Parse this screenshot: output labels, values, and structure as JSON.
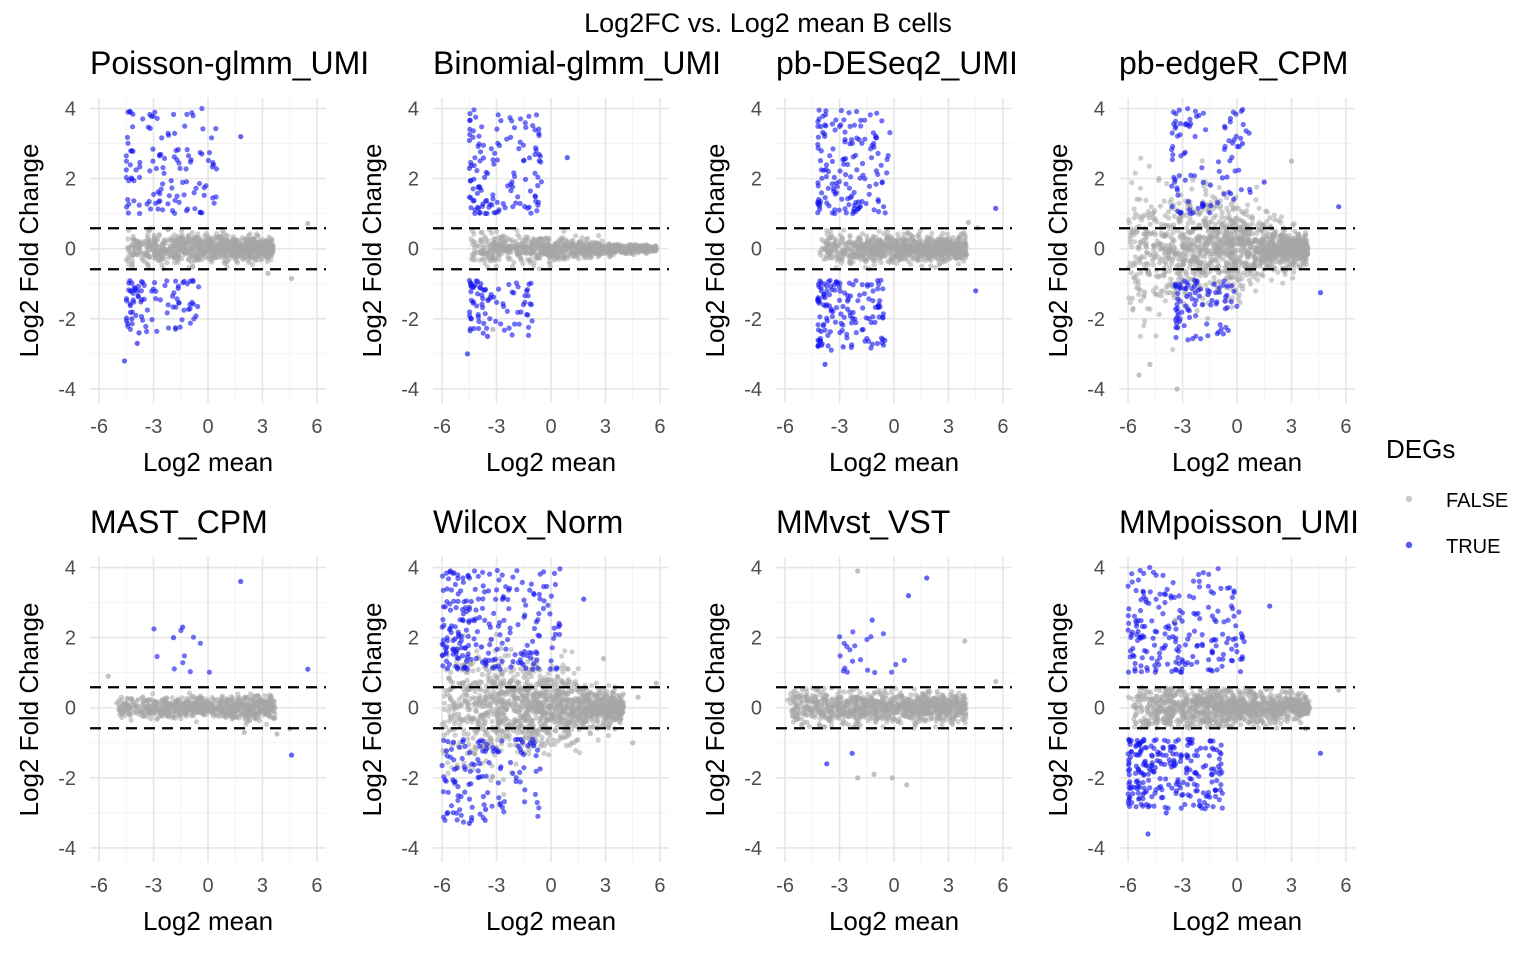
{
  "chart_data": {
    "type": "scatter",
    "title": "Log2FC vs. Log2 mean  B cells",
    "xlabel": "Log2 mean",
    "ylabel": "Log2 Fold Change",
    "xlim": [
      -6.5,
      6.5
    ],
    "ylim": [
      -4.4,
      4.3
    ],
    "xticks": [
      "-6",
      "-3",
      "0",
      "3",
      "6"
    ],
    "yticks": [
      "4",
      "2",
      "0",
      "-2",
      "-4"
    ],
    "xtick_values": [
      -6,
      -3,
      0,
      3,
      6
    ],
    "ytick_values": [
      4,
      2,
      0,
      -2,
      -4
    ],
    "threshold_lines": [
      0.585,
      -0.585
    ],
    "grid": true,
    "legend": {
      "title": "DEGs",
      "placement": "right",
      "entries": [
        {
          "label": "FALSE",
          "color": "#a6a6a6"
        },
        {
          "label": "TRUE",
          "color": "#1010ee"
        }
      ]
    },
    "panels": [
      {
        "title": "Poisson-glmm_UMI",
        "bulk": {
          "xmin": -4.5,
          "xmax": 3.6,
          "spread_left": 0.38,
          "spread_right": 0.18,
          "n": 900
        },
        "true_clusters": [
          {
            "x": [
              -4.5,
              0.5
            ],
            "y": [
              1.0,
              4.0
            ],
            "n": 120
          },
          {
            "x": [
              -4.5,
              -0.5
            ],
            "y": [
              -2.4,
              -0.9
            ],
            "n": 85
          }
        ],
        "outliers": [
          [
            1.8,
            3.2
          ],
          [
            -4.6,
            -3.2
          ],
          [
            -3.8,
            -2.4
          ],
          [
            -4.2,
            -2.0
          ],
          [
            -3.9,
            -2.7
          ]
        ],
        "false_outliers": [
          [
            4.6,
            -0.85
          ],
          [
            5.5,
            0.72
          ],
          [
            3.3,
            -0.7
          ]
        ]
      },
      {
        "title": "Binomial-glmm_UMI",
        "bulk": {
          "xmin": -4.5,
          "xmax": 5.8,
          "spread_left": 0.35,
          "spread_right": 0.05,
          "n": 950
        },
        "true_clusters": [
          {
            "x": [
              -4.5,
              -0.5
            ],
            "y": [
              1.0,
              4.0
            ],
            "n": 130
          },
          {
            "x": [
              -4.5,
              -1.0
            ],
            "y": [
              -2.5,
              -0.9
            ],
            "n": 80
          }
        ],
        "outliers": [
          [
            0.9,
            2.6
          ],
          [
            -4.6,
            -3.0
          ],
          [
            -4.4,
            -2.0
          ],
          [
            -3.5,
            -2.5
          ]
        ],
        "false_outliers": [
          [
            5.8,
            0.0
          ],
          [
            -3.2,
            -2.3
          ]
        ]
      },
      {
        "title": "pb-DESeq2_UMI",
        "bulk": {
          "xmin": -4.1,
          "xmax": 4.0,
          "spread_left": 0.3,
          "spread_right": 0.22,
          "n": 900
        },
        "true_clusters": [
          {
            "x": [
              -4.2,
              -0.2
            ],
            "y": [
              1.0,
              4.0
            ],
            "n": 150
          },
          {
            "x": [
              -4.2,
              -0.5
            ],
            "y": [
              -3.0,
              -0.9
            ],
            "n": 140
          }
        ],
        "outliers": [
          [
            5.6,
            1.15
          ],
          [
            4.5,
            -1.2
          ],
          [
            -3.8,
            -3.3
          ],
          [
            -2.8,
            -2.8
          ]
        ],
        "false_outliers": [
          [
            4.6,
            0.6
          ],
          [
            4.1,
            0.75
          ]
        ]
      },
      {
        "title": "pb-edgeR_CPM",
        "bulk": {
          "xmin": -6.0,
          "xmax": 3.9,
          "spread_left": 1.55,
          "spread_right": 0.25,
          "n": 1400
        },
        "true_clusters": [
          {
            "x": [
              -3.6,
              0.8
            ],
            "y": [
              1.0,
              4.0
            ],
            "n": 95
          },
          {
            "x": [
              -3.4,
              0.0
            ],
            "y": [
              -2.6,
              -0.9
            ],
            "n": 85
          }
        ],
        "outliers": [
          [
            5.6,
            1.2
          ],
          [
            4.6,
            -1.25
          ],
          [
            1.5,
            1.9
          ],
          [
            0.3,
            3.0
          ],
          [
            -1.9,
            1.2
          ]
        ],
        "false_outliers": [
          [
            -3.3,
            -4.0
          ],
          [
            -5.4,
            -3.6
          ],
          [
            3.0,
            2.5
          ],
          [
            -4.8,
            -3.3
          ]
        ]
      },
      {
        "title": "MAST_CPM",
        "bulk": {
          "xmin": -5.2,
          "xmax": 3.7,
          "spread_left": 0.18,
          "spread_right": 0.22,
          "n": 800
        },
        "true_clusters": [
          {
            "x": [
              -3.0,
              0.5
            ],
            "y": [
              1.0,
              2.3
            ],
            "n": 10
          }
        ],
        "outliers": [
          [
            1.8,
            3.6
          ],
          [
            5.5,
            1.1
          ],
          [
            4.6,
            -1.35
          ],
          [
            -1.4,
            2.3
          ],
          [
            -1.9,
            2.0
          ]
        ],
        "false_outliers": [
          [
            -5.5,
            0.9
          ],
          [
            4.5,
            -0.6
          ],
          [
            2.0,
            -0.7
          ],
          [
            3.8,
            -0.75
          ]
        ]
      },
      {
        "title": "Wilcox_Norm",
        "bulk": {
          "xmin": -6.0,
          "xmax": 4.0,
          "spread_left": 1.35,
          "spread_right": 0.25,
          "n": 1400
        },
        "true_clusters": [
          {
            "x": [
              -6.0,
              0.5
            ],
            "y": [
              1.1,
              4.0
            ],
            "n": 230
          },
          {
            "x": [
              -6.0,
              -0.5
            ],
            "y": [
              -3.3,
              -0.9
            ],
            "n": 120
          }
        ],
        "outliers": [
          [
            1.8,
            3.1
          ],
          [
            -4.5,
            -3.3
          ],
          [
            -3.6,
            -2.9
          ]
        ],
        "false_outliers": [
          [
            5.8,
            0.7
          ],
          [
            4.5,
            -1.0
          ],
          [
            2.9,
            1.4
          ],
          [
            4.8,
            0.3
          ]
        ]
      },
      {
        "title": "MMvst_VST",
        "bulk": {
          "xmin": -6.0,
          "xmax": 4.0,
          "spread_left": 0.35,
          "spread_right": 0.25,
          "n": 1000
        },
        "true_clusters": [
          {
            "x": [
              -3.0,
              1.0
            ],
            "y": [
              1.0,
              2.4
            ],
            "n": 20
          }
        ],
        "outliers": [
          [
            1.8,
            3.7
          ],
          [
            0.8,
            3.2
          ],
          [
            -1.2,
            2.5
          ],
          [
            -3.7,
            -1.6
          ],
          [
            -2.3,
            -1.3
          ]
        ],
        "false_outliers": [
          [
            -2.0,
            3.9
          ],
          [
            -2.0,
            -2.0
          ],
          [
            -0.1,
            -2.0
          ],
          [
            0.7,
            -2.2
          ],
          [
            -1.1,
            -1.9
          ],
          [
            5.6,
            0.75
          ],
          [
            3.9,
            1.9
          ]
        ]
      },
      {
        "title": "MMpoisson_UMI",
        "bulk": {
          "xmin": -6.0,
          "xmax": 4.0,
          "spread_left": 0.55,
          "spread_right": 0.2,
          "n": 1100
        },
        "true_clusters": [
          {
            "x": [
              -6.0,
              0.5
            ],
            "y": [
              1.0,
              4.0
            ],
            "n": 200
          },
          {
            "x": [
              -6.0,
              -0.8
            ],
            "y": [
              -2.9,
              -0.9
            ],
            "n": 240
          }
        ],
        "outliers": [
          [
            1.8,
            2.9
          ],
          [
            4.6,
            -1.3
          ],
          [
            -4.9,
            -3.6
          ],
          [
            -3.9,
            -3.0
          ],
          [
            -5.5,
            -2.3
          ]
        ],
        "false_outliers": [
          [
            5.6,
            0.5
          ],
          [
            3.8,
            -0.6
          ],
          [
            -3.4,
            2.5
          ]
        ]
      }
    ]
  }
}
